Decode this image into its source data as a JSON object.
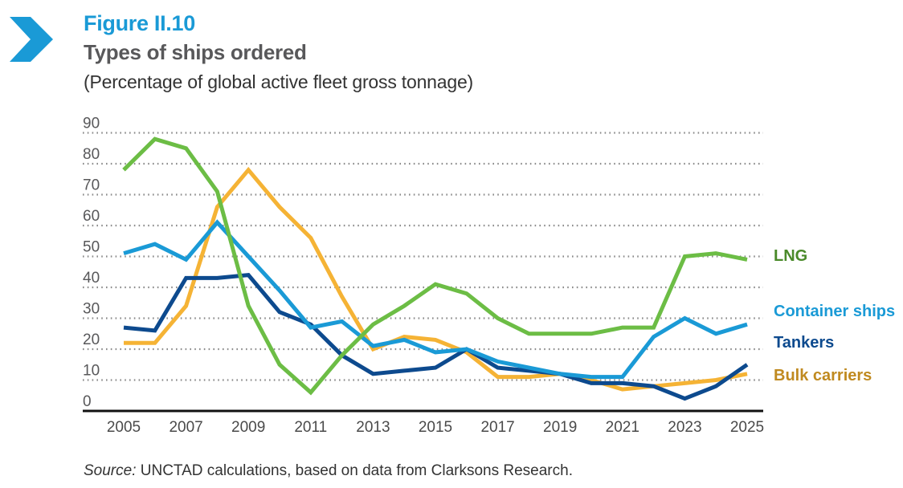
{
  "header": {
    "figure_label": "Figure II.10",
    "title": "Types of ships ordered",
    "subtitle": "(Percentage of global active fleet gross tonnage)",
    "icon": "chevron-right-icon",
    "accent_color": "#1a9ad6"
  },
  "footer": {
    "source_label": "Source:",
    "source_text": " UNCTAD calculations, based on data from Clarksons Research."
  },
  "chart_data": {
    "type": "line",
    "title": "Types of ships ordered",
    "subtitle": "(Percentage of global active fleet gross tonnage)",
    "xlabel": "",
    "ylabel": "",
    "x": [
      2005,
      2006,
      2007,
      2008,
      2009,
      2010,
      2011,
      2012,
      2013,
      2014,
      2015,
      2016,
      2017,
      2018,
      2019,
      2020,
      2021,
      2022,
      2023,
      2024,
      2025
    ],
    "x_tick_labels": [
      "2005",
      "2007",
      "2009",
      "2011",
      "2013",
      "2015",
      "2017",
      "2019",
      "2021",
      "2023",
      "2025"
    ],
    "y_tick_labels": [
      "0",
      "10",
      "20",
      "30",
      "40",
      "50",
      "60",
      "70",
      "80",
      "90"
    ],
    "ylim": [
      0,
      90
    ],
    "xlim": [
      2005,
      2025
    ],
    "grid": "horizontal-dotted",
    "legend_placement": "right, inline at line ends",
    "series": [
      {
        "name": "LNG",
        "color": "#6cbd45",
        "label_color": "#4a8a2a",
        "values": [
          78,
          88,
          85,
          71,
          34,
          15,
          6,
          18,
          28,
          34,
          41,
          38,
          30,
          25,
          25,
          25,
          27,
          27,
          50,
          51,
          49
        ]
      },
      {
        "name": "Container ships",
        "color": "#1a9ad6",
        "label_color": "#1a9ad6",
        "values": [
          51,
          54,
          49,
          61,
          50,
          39,
          27,
          29,
          21,
          23,
          19,
          20,
          16,
          14,
          12,
          11,
          11,
          24,
          30,
          25,
          28
        ]
      },
      {
        "name": "Tankers",
        "color": "#0d4a8e",
        "label_color": "#0d4a8e",
        "values": [
          27,
          26,
          43,
          43,
          44,
          32,
          28,
          18,
          12,
          13,
          14,
          20,
          14,
          13,
          12,
          9,
          9,
          8,
          4,
          8,
          15
        ]
      },
      {
        "name": "Bulk carriers",
        "color": "#f5b335",
        "label_color": "#c08a20",
        "values": [
          22,
          22,
          34,
          66,
          78,
          66,
          56,
          37,
          20,
          24,
          23,
          19,
          11,
          11,
          12,
          10,
          7,
          8,
          9,
          10,
          12
        ]
      }
    ]
  }
}
